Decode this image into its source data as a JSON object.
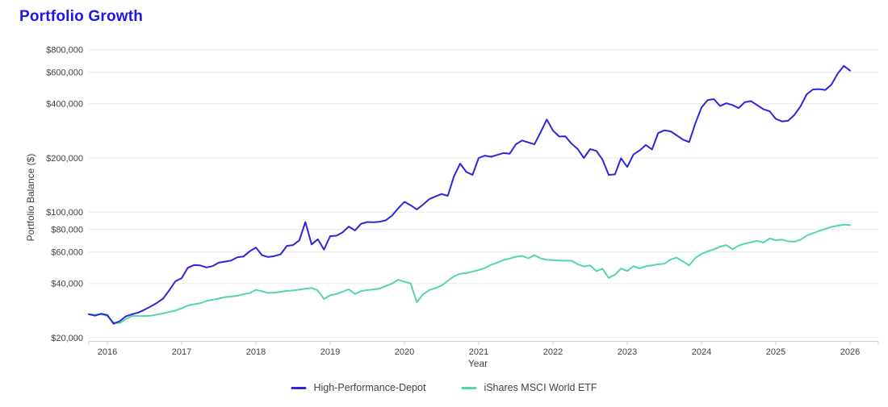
{
  "chart_data": {
    "type": "line",
    "title": "Portfolio Growth",
    "xlabel": "Year",
    "ylabel": "Portfolio Balance ($)",
    "y_scale": "log",
    "ylim": [
      20000,
      800000
    ],
    "xlim": [
      2015.75,
      2026.02
    ],
    "grid": true,
    "legend_position": "bottom-center",
    "y_ticks": {
      "values": [
        800000,
        600000,
        400000,
        200000,
        100000,
        80000,
        60000,
        40000,
        20000
      ],
      "labels": [
        "$800,000",
        "$600,000",
        "$400,000",
        "$200,000",
        "$100,000",
        "$80,000",
        "$60,000",
        "$40,000",
        "$20,000"
      ]
    },
    "x_ticks": {
      "values": [
        2016,
        2017,
        2018,
        2019,
        2020,
        2021,
        2022,
        2023,
        2024,
        2025,
        2026
      ],
      "labels": [
        "2016",
        "2017",
        "2018",
        "2019",
        "2020",
        "2021",
        "2022",
        "2023",
        "2024",
        "2025",
        "2026"
      ]
    },
    "colors": {
      "title": "#1f17e6",
      "grid": "#e8e8e8",
      "axis": "#cfcfcf",
      "tick_text": "#3f3f3f"
    },
    "x_start": 2015.75,
    "x_step_years": 0.0833333,
    "series": [
      {
        "name": "High-Performance-Depot",
        "color": "#2d26db",
        "values": [
          27000,
          26500,
          27200,
          26700,
          23900,
          24700,
          26300,
          27000,
          27600,
          28600,
          29800,
          31200,
          33000,
          36700,
          41200,
          42900,
          49000,
          50700,
          50500,
          49200,
          50000,
          52300,
          53000,
          53700,
          56000,
          56600,
          60500,
          63500,
          57500,
          56200,
          56900,
          58200,
          64800,
          65500,
          69500,
          88000,
          66000,
          70600,
          61800,
          73400,
          73800,
          77000,
          83000,
          79000,
          86000,
          88000,
          87700,
          88300,
          90000,
          95500,
          105000,
          114000,
          109000,
          103500,
          110000,
          118000,
          122000,
          126000,
          123000,
          158000,
          186000,
          167000,
          161000,
          200000,
          206000,
          203000,
          208000,
          213000,
          211000,
          238000,
          250000,
          244000,
          238000,
          278000,
          327000,
          284000,
          263000,
          264000,
          240000,
          224000,
          200000,
          224000,
          219000,
          196000,
          161000,
          162000,
          199000,
          178000,
          209000,
          220000,
          236000,
          223000,
          275000,
          285000,
          281000,
          267000,
          253000,
          245000,
          311000,
          382000,
          420000,
          425000,
          389000,
          403000,
          394000,
          379000,
          409000,
          414000,
          393000,
          373000,
          364000,
          330000,
          319000,
          322000,
          347000,
          388000,
          452000,
          481000,
          483000,
          478000,
          512000,
          590000,
          650000,
          612000
        ]
      },
      {
        "name": "iShares MSCI World ETF",
        "color": "#54d6a8",
        "values": [
          27000,
          26800,
          27000,
          26400,
          24300,
          24100,
          25400,
          26400,
          26400,
          26400,
          26500,
          26900,
          27300,
          27800,
          28300,
          29100,
          30200,
          30700,
          31100,
          32000,
          32500,
          33000,
          33600,
          33900,
          34200,
          34900,
          35400,
          36900,
          36200,
          35500,
          35600,
          36000,
          36400,
          36600,
          37000,
          37400,
          37800,
          36600,
          32800,
          34400,
          35000,
          36000,
          37200,
          35000,
          36300,
          36800,
          37100,
          37500,
          38800,
          40000,
          42000,
          40900,
          40100,
          31500,
          34800,
          36800,
          37700,
          39000,
          41400,
          43800,
          45400,
          45700,
          46600,
          47600,
          48800,
          50900,
          52200,
          54100,
          55100,
          56400,
          57000,
          55300,
          57500,
          55300,
          54200,
          54000,
          53700,
          53600,
          53600,
          51200,
          49800,
          50500,
          46900,
          48400,
          43000,
          44800,
          48500,
          47000,
          50000,
          48600,
          49900,
          50500,
          51200,
          51600,
          54500,
          55800,
          53100,
          50500,
          55500,
          58500,
          60400,
          62000,
          64200,
          65500,
          62100,
          65000,
          66800,
          67800,
          69200,
          67600,
          71300,
          69700,
          70300,
          68700,
          68400,
          70200,
          74000,
          76200,
          78500,
          80500,
          82700,
          84000,
          85000,
          84500
        ]
      }
    ]
  }
}
